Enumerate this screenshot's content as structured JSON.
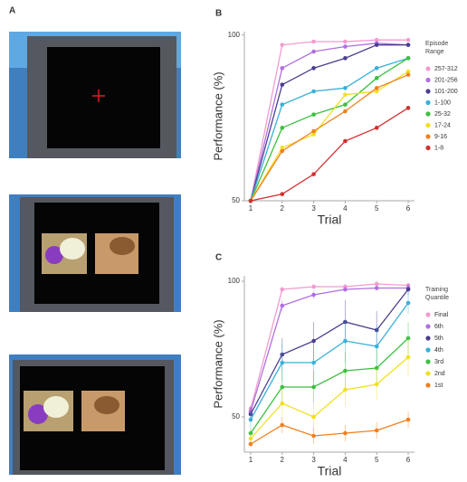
{
  "panel_labels": [
    "A",
    "B",
    "C"
  ],
  "chart_data": [
    {
      "type": "line",
      "y_label": "Performance (%)",
      "x_label": "Trial",
      "legend_title": "Episode Range",
      "x": [
        1,
        2,
        3,
        4,
        5,
        6
      ],
      "xlim": [
        0.8,
        6.2
      ],
      "xticks": [
        1,
        2,
        3,
        4,
        5,
        6
      ],
      "ylim": [
        50,
        101
      ],
      "yticks": [
        50,
        100
      ],
      "series": [
        {
          "name": "257-312",
          "color": "#f29ccf",
          "values": [
            50,
            97,
            98,
            98,
            98.5,
            98.5
          ]
        },
        {
          "name": "201-256",
          "color": "#b070e0",
          "values": [
            50,
            90,
            95,
            96.5,
            97.5,
            97
          ]
        },
        {
          "name": "101-200",
          "color": "#4a3f8f",
          "values": [
            50,
            85,
            90,
            93,
            97,
            97
          ]
        },
        {
          "name": "1-100",
          "color": "#3ab0d8",
          "values": [
            50,
            79,
            83,
            84,
            90,
            93
          ]
        },
        {
          "name": "25-32",
          "color": "#3cc040",
          "values": [
            50,
            72,
            76,
            79,
            87,
            93
          ]
        },
        {
          "name": "17-24",
          "color": "#f0e020",
          "values": [
            50,
            66,
            70,
            82,
            83,
            89
          ]
        },
        {
          "name": "9-16",
          "color": "#f08020",
          "values": [
            50,
            65,
            71,
            77,
            84,
            88
          ]
        },
        {
          "name": "1-8",
          "color": "#d03030",
          "values": [
            50,
            52,
            58,
            68,
            72,
            78
          ]
        }
      ]
    },
    {
      "type": "line",
      "y_label": "Performance (%)",
      "x_label": "Trial",
      "legend_title": "Training Quantile",
      "x": [
        1,
        2,
        3,
        4,
        5,
        6
      ],
      "xlim": [
        0.8,
        6.2
      ],
      "xticks": [
        1,
        2,
        3,
        4,
        5,
        6
      ],
      "ylim": [
        37,
        102
      ],
      "yticks": [
        50,
        100
      ],
      "series": [
        {
          "name": "Final",
          "color": "#f29ccf",
          "values": [
            53,
            97,
            98,
            98,
            99,
            98.5
          ],
          "errors": [
            1,
            1,
            1,
            1,
            1,
            1
          ]
        },
        {
          "name": "6th",
          "color": "#b070e0",
          "values": [
            52,
            91,
            95,
            97,
            97.5,
            97.5
          ],
          "errors": [
            1,
            2,
            1.5,
            1,
            1,
            1
          ]
        },
        {
          "name": "5th",
          "color": "#4a3f8f",
          "values": [
            51,
            73,
            78,
            85,
            82,
            97
          ],
          "errors": [
            3,
            6,
            7,
            8,
            7,
            2
          ]
        },
        {
          "name": "4th",
          "color": "#3ab0d8",
          "values": [
            49,
            70,
            70,
            78,
            76,
            92
          ],
          "errors": [
            3,
            7,
            7,
            8,
            8,
            4
          ]
        },
        {
          "name": "3rd",
          "color": "#3cc040",
          "values": [
            44,
            61,
            61,
            67,
            68,
            79
          ],
          "errors": [
            2,
            6,
            6,
            7,
            7,
            6
          ]
        },
        {
          "name": "2nd",
          "color": "#f0e020",
          "values": [
            42,
            55,
            50,
            60,
            62,
            72
          ],
          "errors": [
            2,
            5,
            5,
            6,
            6,
            7
          ]
        },
        {
          "name": "1st",
          "color": "#f08020",
          "values": [
            40,
            47,
            43,
            44,
            45,
            49
          ],
          "errors": [
            1,
            3,
            3,
            3,
            3,
            3
          ]
        }
      ]
    }
  ]
}
